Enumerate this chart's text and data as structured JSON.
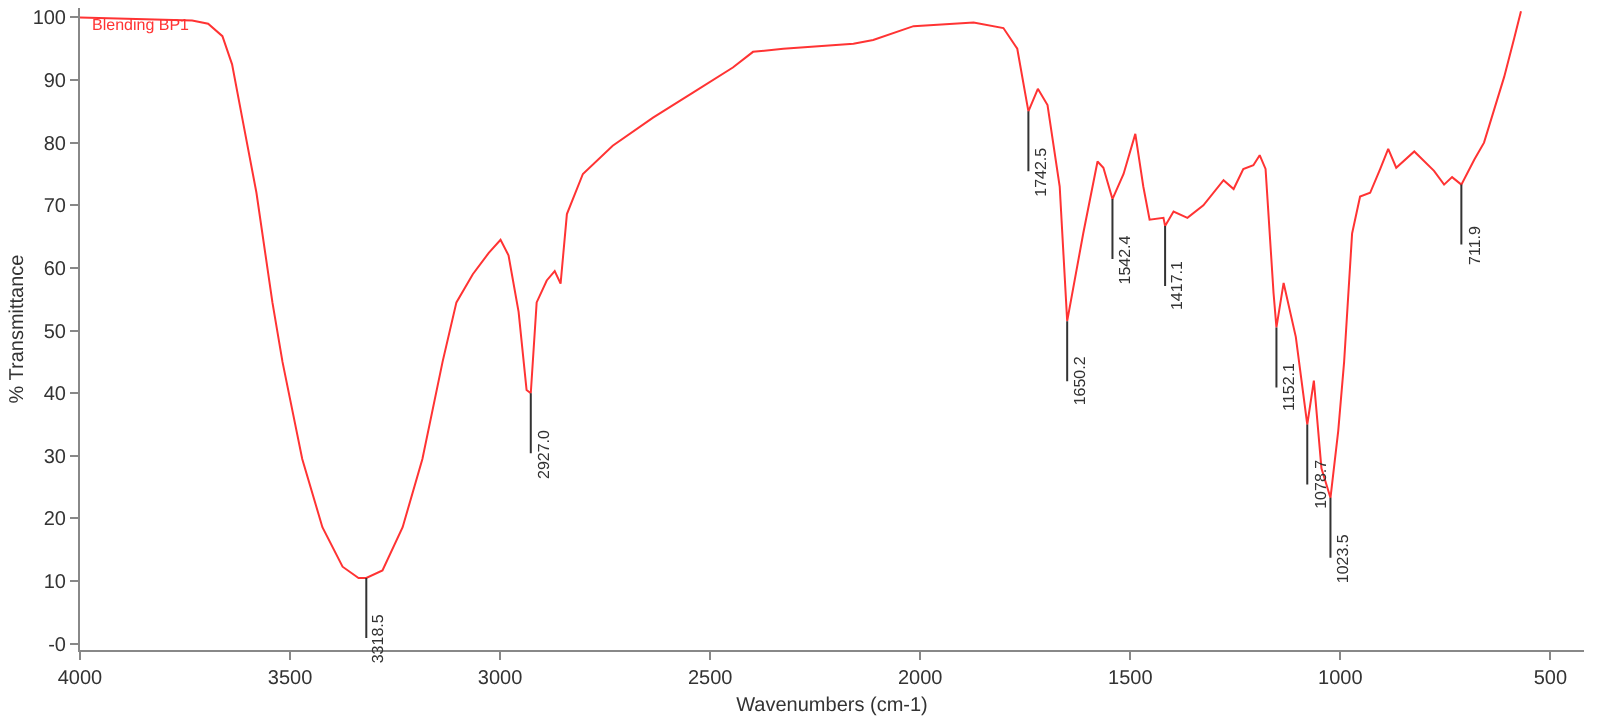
{
  "chart_data": {
    "type": "line",
    "xlabel": "Wavenumbers (cm-1)",
    "ylabel": "% Transmittance",
    "xlim": [
      4000,
      420
    ],
    "xticks": [
      4000,
      3500,
      3000,
      2500,
      2000,
      1500,
      1000,
      500
    ],
    "ylim": [
      -1,
      101.5
    ],
    "yticks": [
      {
        "value": 0,
        "label": "-0"
      },
      10,
      20,
      30,
      40,
      50,
      60,
      70,
      80,
      90,
      100
    ],
    "grid": false,
    "marker": "none",
    "line_style": "solid",
    "x": [
      4000,
      3733,
      3695,
      3661,
      3638,
      3614,
      3580,
      3542,
      3518,
      3471,
      3423,
      3375,
      3337,
      3318.5,
      3280,
      3232,
      3185,
      3137,
      3104,
      3065,
      3027,
      2999,
      2980,
      2956,
      2937,
      2927,
      2913,
      2889,
      2870,
      2856,
      2841,
      2803,
      2732,
      2636,
      2541,
      2446,
      2398,
      2326,
      2159,
      2112,
      2016,
      1873,
      1802,
      1769,
      1742.5,
      1720,
      1697,
      1668,
      1650.2,
      1612,
      1578,
      1564,
      1542.4,
      1516,
      1488,
      1469,
      1454,
      1421,
      1417.1,
      1397,
      1364,
      1326,
      1278,
      1254,
      1231,
      1207,
      1192,
      1178,
      1159,
      1152.1,
      1135,
      1106,
      1078.7,
      1063,
      1045,
      1023.5,
      1005,
      991,
      972,
      953,
      929,
      905,
      886,
      867,
      824,
      777,
      753,
      734,
      711.9,
      681,
      658,
      610,
      586,
      570
    ],
    "series": [
      {
        "color": "#ff3333",
        "values": [
          100,
          99.5,
          99,
          97,
          92.5,
          84,
          72,
          54.5,
          45,
          29.5,
          18.6,
          12.3,
          10.5,
          10.5,
          11.7,
          18.6,
          29.5,
          45,
          54.5,
          59,
          62.4,
          64.5,
          62,
          53,
          40.5,
          40,
          54.5,
          58,
          59.5,
          57.5,
          68.6,
          75,
          79.5,
          84,
          88,
          92,
          94.5,
          95,
          95.8,
          96.4,
          98.6,
          99.2,
          98.3,
          95,
          85,
          88.6,
          86,
          73,
          51.5,
          65.5,
          77,
          76,
          71,
          75,
          81.4,
          73,
          67.7,
          68,
          66.7,
          69,
          68,
          70,
          74,
          72.6,
          75.8,
          76.4,
          78,
          75.8,
          56,
          50.5,
          57.6,
          49,
          35,
          42,
          28,
          23.3,
          34,
          45,
          65.5,
          71.4,
          72,
          75.8,
          79,
          76,
          78.6,
          75.5,
          73.3,
          74.5,
          73.3,
          77.3,
          80,
          90.5,
          96.7,
          101
        ]
      }
    ],
    "annotations": [
      "Blending BP1",
      {
        "text": "3318.5",
        "x": 3318.5,
        "y": 10.5
      },
      {
        "text": "2927.0",
        "x": 2927,
        "y": 40
      },
      {
        "text": "1742.5",
        "x": 1742.5,
        "y": 85
      },
      {
        "text": "1650.2",
        "x": 1650.2,
        "y": 51.5
      },
      {
        "text": "1542.4",
        "x": 1542.4,
        "y": 71
      },
      {
        "text": "1417.1",
        "x": 1417.1,
        "y": 66.7
      },
      {
        "text": "1152.1",
        "x": 1152.1,
        "y": 50.5
      },
      {
        "text": "1078.7",
        "x": 1078.7,
        "y": 35
      },
      {
        "text": "1023.5",
        "x": 1023.5,
        "y": 23.3
      },
      {
        "text": "711.9",
        "x": 711.9,
        "y": 73.3
      }
    ]
  }
}
